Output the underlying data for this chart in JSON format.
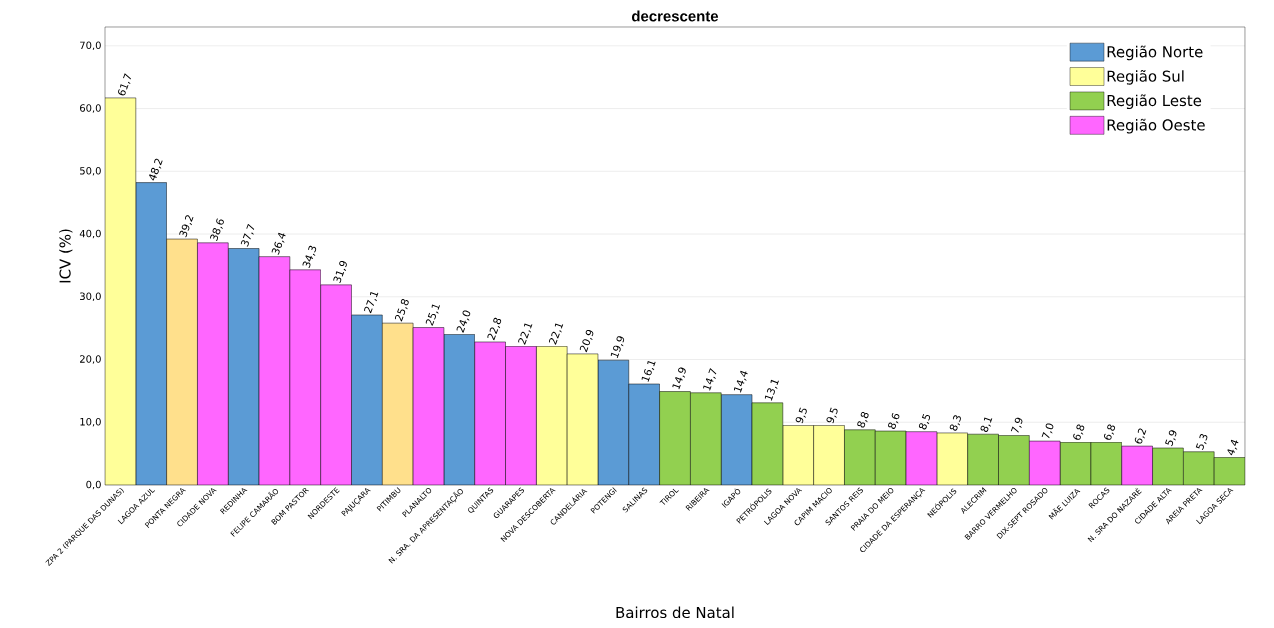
{
  "chart_data": {
    "type": "bar",
    "title": "decrescente",
    "xlabel": "Bairros de Natal",
    "ylabel": "ICV (%)",
    "categories": [
      "ZPA 2 (PARQUE DAS DUNAS)",
      "LAGOA AZUL",
      "PONTA NEGRA",
      "CIDADE NOVA",
      "REDINHA",
      "FELIPE CAMARÃO",
      "BOM PASTOR",
      "NORDESTE",
      "PAJUÇARA",
      "PITIMBU",
      "PLANALTO",
      "N. SRA. DA APRESENTAÇÃO",
      "QUINTAS",
      "GUARAPES",
      "NOVA DESCOBERTA",
      "CANDELÁRIA",
      "POTENGI",
      "SALINAS",
      "TIROL",
      "RIBEIRA",
      "IGAPÓ",
      "PETRÓPOLIS",
      "LAGOA NOVA",
      "CAPIM MACIO",
      "SANTOS REIS",
      "PRAIA DO MEIO",
      "CIDADE DA ESPERANÇA",
      "NEÓPOLIS",
      "ALECRIM",
      "BARRO VERMELHO",
      "DIX-SEPT ROSADO",
      "MÃE LUIZA",
      "ROCAS",
      "N. SRA DO NAZARÉ",
      "CIDADE ALTA",
      "AREIA PRETA",
      "LAGOA SECA"
    ],
    "series": [
      {
        "name": "Região Norte",
        "color": "#5b9bd5",
        "values": [
          null,
          48.2,
          null,
          null,
          37.7,
          null,
          null,
          null,
          27.1,
          null,
          null,
          24.0,
          null,
          null,
          null,
          null,
          19.9,
          16.1,
          null,
          null,
          14.4,
          null,
          null,
          null,
          null,
          null,
          null,
          null,
          null,
          null,
          null,
          null,
          null,
          null,
          null,
          null,
          null
        ]
      },
      {
        "name": "Região Sul",
        "color": "#ffff99",
        "colors": [
          "#ffff99",
          null,
          "#ffe08c",
          null,
          null,
          null,
          null,
          null,
          null,
          "#ffe08c",
          null,
          null,
          null,
          null,
          "#ffff99",
          "#ffff99",
          null,
          null,
          null,
          null,
          null,
          null,
          "#ffff99",
          "#ffff99",
          null,
          null,
          null,
          "#ffff99",
          null,
          null,
          null,
          null,
          null,
          null,
          null,
          null,
          null
        ],
        "values": [
          61.7,
          null,
          39.2,
          null,
          null,
          null,
          null,
          null,
          null,
          25.8,
          null,
          null,
          null,
          null,
          22.1,
          20.9,
          null,
          null,
          null,
          null,
          null,
          null,
          9.5,
          9.5,
          null,
          null,
          null,
          8.3,
          null,
          null,
          null,
          null,
          null,
          null,
          null,
          null,
          null
        ]
      },
      {
        "name": "Região Leste",
        "color": "#92d050",
        "values": [
          null,
          null,
          null,
          null,
          null,
          null,
          null,
          null,
          null,
          null,
          null,
          null,
          null,
          null,
          null,
          null,
          null,
          null,
          14.9,
          14.7,
          null,
          13.1,
          null,
          null,
          8.8,
          8.6,
          null,
          null,
          8.1,
          7.9,
          null,
          6.8,
          6.8,
          null,
          5.9,
          5.3,
          4.4
        ]
      },
      {
        "name": "Região Oeste",
        "color": "#ff66ff",
        "values": [
          null,
          null,
          null,
          38.6,
          null,
          36.4,
          34.3,
          31.9,
          null,
          null,
          25.1,
          null,
          22.8,
          22.1,
          null,
          null,
          null,
          null,
          null,
          null,
          null,
          null,
          null,
          null,
          null,
          null,
          8.5,
          null,
          null,
          null,
          7.0,
          null,
          null,
          6.2,
          null,
          null,
          null
        ]
      }
    ],
    "value_labels": [
      "61,7",
      "48,2",
      "39,2",
      "38,6",
      "37,7",
      "36,4",
      "34,3",
      "31,9",
      "27,1",
      "25,8",
      "25,1",
      "24,0",
      "22,8",
      "22,1",
      "22,1",
      "20,9",
      "19,9",
      "16,1",
      "14,9",
      "14,7",
      "14,4",
      "13,1",
      "9,5",
      "9,5",
      "8,8",
      "8,6",
      "8,5",
      "8,3",
      "8,1",
      "7,9",
      "7,0",
      "6,8",
      "6,8",
      "6,2",
      "5,9",
      "5,3",
      "4,4"
    ],
    "ylim": [
      0,
      73
    ],
    "yticks": [
      {
        "value": 0,
        "label": "0,0"
      },
      {
        "value": 10,
        "label": "10,0"
      },
      {
        "value": 20,
        "label": "20,0"
      },
      {
        "value": 30,
        "label": "30,0"
      },
      {
        "value": 40,
        "label": "40,0"
      },
      {
        "value": 50,
        "label": "50,0"
      },
      {
        "value": 60,
        "label": "60,0"
      },
      {
        "value": 70,
        "label": "70,0"
      }
    ],
    "grid": "y",
    "legend": "top right"
  }
}
